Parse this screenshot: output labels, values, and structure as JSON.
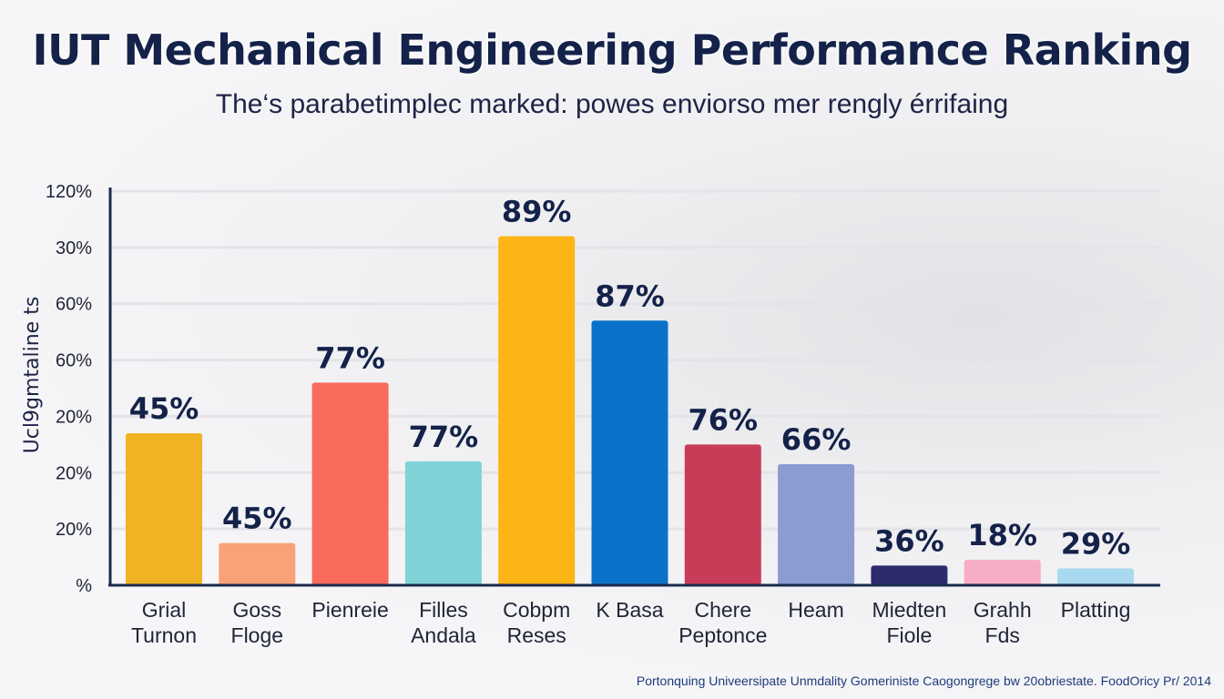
{
  "chart_data": {
    "type": "bar",
    "title": "IUT Mechanical Engineering Performance Ranking",
    "subtitle": "The‘s parabetimplec marked: powes enviorso mer rengly érrifaing",
    "ylabel": "Ucl9gmtaline ts",
    "xlabel": "",
    "y_tick_labels": [
      "%",
      "20%",
      "20%",
      "20%",
      "60%",
      "60%",
      "30%",
      "120%"
    ],
    "grid": true,
    "categories": [
      [
        "Grial",
        "Turnon"
      ],
      [
        "Goss",
        "Floge"
      ],
      [
        "Pienreie"
      ],
      [
        "Filles",
        "Andala"
      ],
      [
        "Cobpm",
        "Reses"
      ],
      [
        "K Basa"
      ],
      [
        "Chere",
        "Peptonce"
      ],
      [
        "Heam"
      ],
      [
        "Miedten",
        "Fiole"
      ],
      [
        "Grahh",
        "Fds"
      ],
      [
        "Platting"
      ]
    ],
    "data_labels": [
      "45%",
      "45%",
      "77%",
      "77%",
      "89%",
      "87%",
      "76%",
      "66%",
      "36%",
      "18%",
      "29%"
    ],
    "values": [
      2.7,
      0.75,
      3.6,
      2.2,
      6.2,
      4.7,
      2.5,
      2.15,
      0.35,
      0.45,
      0.3
    ],
    "ylim": [
      0,
      7
    ],
    "colors": [
      "#f0b323",
      "#f9a277",
      "#f96b5c",
      "#7fd3d6",
      "#fdb515",
      "#0a73c9",
      "#c93c57",
      "#8a9cd1",
      "#2c2c6c",
      "#f8adc6",
      "#a8d9ef"
    ]
  },
  "footer": "Portonquing Univeersipate Unmdality Gomeriniste Caogongrege bw 20obriestate. FoodOricy Pr/ 2014"
}
